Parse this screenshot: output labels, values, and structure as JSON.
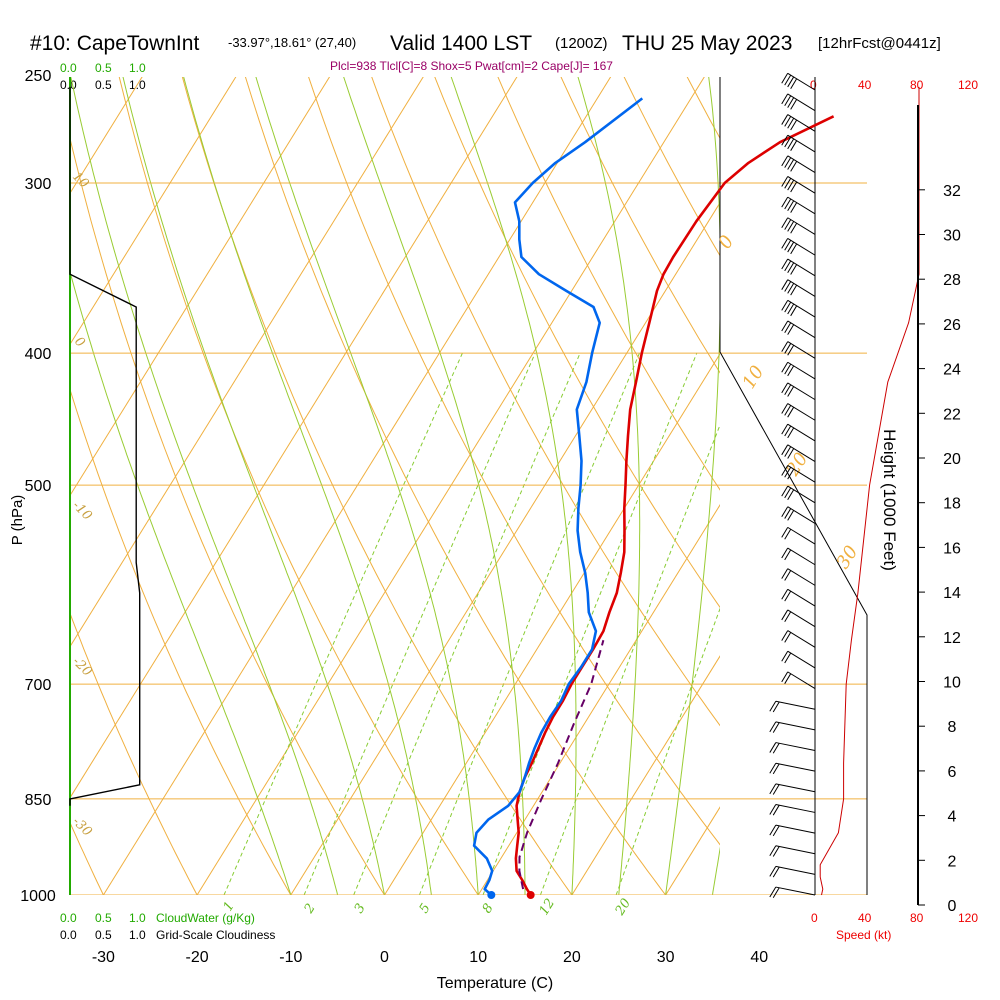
{
  "header": {
    "title_main": "#10: CapeTownInt",
    "title_coords": "-33.97°,18.61° (27,40)",
    "title_valid": "Valid 1400 LST",
    "title_utc": "(1200Z)",
    "title_date": "THU 25 May 2023",
    "title_fcst": "[12hrFcst@0441z]",
    "stability": "Plcl=938 Tlcl[C]=8 Shox=5 Pwat[cm]=2 Cape[J]= 167"
  },
  "cloud_scale": {
    "green_ticks": [
      "0.0",
      "0.5",
      "1.0"
    ],
    "black_ticks": [
      "0.0",
      "0.5",
      "1.0"
    ],
    "cloudwater_label": "CloudWater (g/Kg)",
    "cloudiness_label": "Grid-Scale Cloudiness"
  },
  "wind_scale": {
    "ticks": [
      "0",
      "40",
      "80",
      "120"
    ],
    "label": "Speed (kt)"
  },
  "isotherm_labels": [
    "0",
    "10",
    "20",
    "30"
  ],
  "adiabat_labels": [
    "10",
    "0",
    "-10",
    "-20",
    "-30"
  ],
  "mixing_labels": [
    "1",
    "2",
    "3",
    "5",
    "8",
    "12",
    "20"
  ],
  "colors": {
    "temperature": "#dd0000",
    "dewpoint": "#0066ee",
    "parcel": "#660066",
    "isotherm": "#f0b040",
    "dry_adiabat": "#f0b040",
    "moist_adiabat": "#99cc33",
    "mixing_ratio": "#88cc33",
    "wind_profile": "#cc0000"
  },
  "chart_data": {
    "type": "line",
    "xlabel": "Temperature (C)",
    "ylabel": "P (hPa)",
    "y2label": "Height (1000 Feet)",
    "xlim": [
      -34,
      47
    ],
    "ylim": [
      1000,
      250
    ],
    "y_scale": "log",
    "x_ticks": [
      "-30",
      "-20",
      "-10",
      "0",
      "10",
      "20",
      "30",
      "40"
    ],
    "pressure_ticks": [
      "250",
      "300",
      "400",
      "500",
      "700",
      "850",
      "1000"
    ],
    "height_ticks": [
      "0",
      "2",
      "4",
      "6",
      "8",
      "10",
      "12",
      "14",
      "16",
      "18",
      "20",
      "22",
      "24",
      "26",
      "28",
      "30",
      "32"
    ],
    "series": [
      {
        "key": "temperature",
        "p": [
          1000,
          990,
          975,
          960,
          940,
          920,
          900,
          880,
          860,
          840,
          820,
          800,
          780,
          760,
          740,
          720,
          700,
          680,
          660,
          640,
          620,
          600,
          580,
          560,
          540,
          520,
          500,
          480,
          460,
          440,
          420,
          400,
          380,
          360,
          350,
          340,
          320,
          300,
          290,
          280,
          268
        ],
        "t": [
          15.6,
          14.8,
          13.7,
          12.5,
          11.6,
          10.9,
          10.2,
          9.2,
          8.2,
          7.6,
          7.2,
          7.0,
          6.7,
          6.4,
          6.2,
          6.2,
          6.0,
          6.0,
          6.0,
          5.9,
          5.3,
          4.8,
          3.9,
          2.9,
          1.5,
          0.0,
          -1.4,
          -2.9,
          -4.4,
          -5.9,
          -7.1,
          -8.4,
          -9.6,
          -10.9,
          -11.3,
          -11.4,
          -11.3,
          -10.8,
          -9.6,
          -7.6,
          -3.6
        ]
      },
      {
        "key": "dewpoint",
        "p": [
          1000,
          990,
          975,
          960,
          940,
          920,
          900,
          880,
          860,
          840,
          820,
          800,
          780,
          760,
          740,
          720,
          700,
          680,
          660,
          640,
          620,
          600,
          580,
          560,
          540,
          520,
          500,
          480,
          460,
          440,
          420,
          400,
          380,
          370,
          360,
          350,
          340,
          330,
          320,
          310,
          300,
          290,
          280,
          260
        ],
        "t": [
          11.4,
          10.3,
          10.2,
          9.9,
          8.5,
          6.3,
          5.7,
          6.1,
          7.3,
          7.6,
          7.2,
          6.7,
          6.3,
          6.0,
          5.9,
          6.0,
          5.7,
          5.9,
          5.9,
          5.1,
          3.1,
          1.7,
          0.1,
          -1.8,
          -3.5,
          -4.9,
          -6.2,
          -7.7,
          -9.6,
          -11.6,
          -12.4,
          -13.7,
          -14.9,
          -16.6,
          -20.6,
          -24.6,
          -27.6,
          -29.0,
          -30.2,
          -31.9,
          -31.3,
          -30.2,
          -28.4,
          -25.2
        ]
      },
      {
        "key": "parcel",
        "p": [
          990,
          975,
          960,
          938,
          900,
          850,
          800,
          750,
          700,
          650
        ],
        "t": [
          14.4,
          13.6,
          12.8,
          11.9,
          11.1,
          10.4,
          9.8,
          8.9,
          8.1,
          6.5
        ]
      }
    ],
    "surface_markers": [
      {
        "key": "temperature",
        "p": 1000,
        "t": 15.6
      },
      {
        "key": "dewpoint",
        "p": 1000,
        "t": 11.4
      }
    ],
    "cloud_profile": {
      "cloudiness_x": [
        0.0,
        0.0,
        0.77,
        0.77,
        0.81,
        0.81,
        0.0,
        0.0
      ],
      "p": [
        255,
        350,
        370,
        570,
        600,
        830,
        850,
        860
      ]
    },
    "wind_speed_profile": {
      "kt": [
        5,
        6,
        4,
        4,
        18,
        22,
        22,
        24,
        28,
        33,
        42,
        56,
        72,
        80,
        80,
        80
      ],
      "p": [
        1000,
        990,
        970,
        950,
        900,
        850,
        800,
        700,
        650,
        600,
        500,
        420,
        380,
        350,
        300,
        255
      ]
    }
  }
}
